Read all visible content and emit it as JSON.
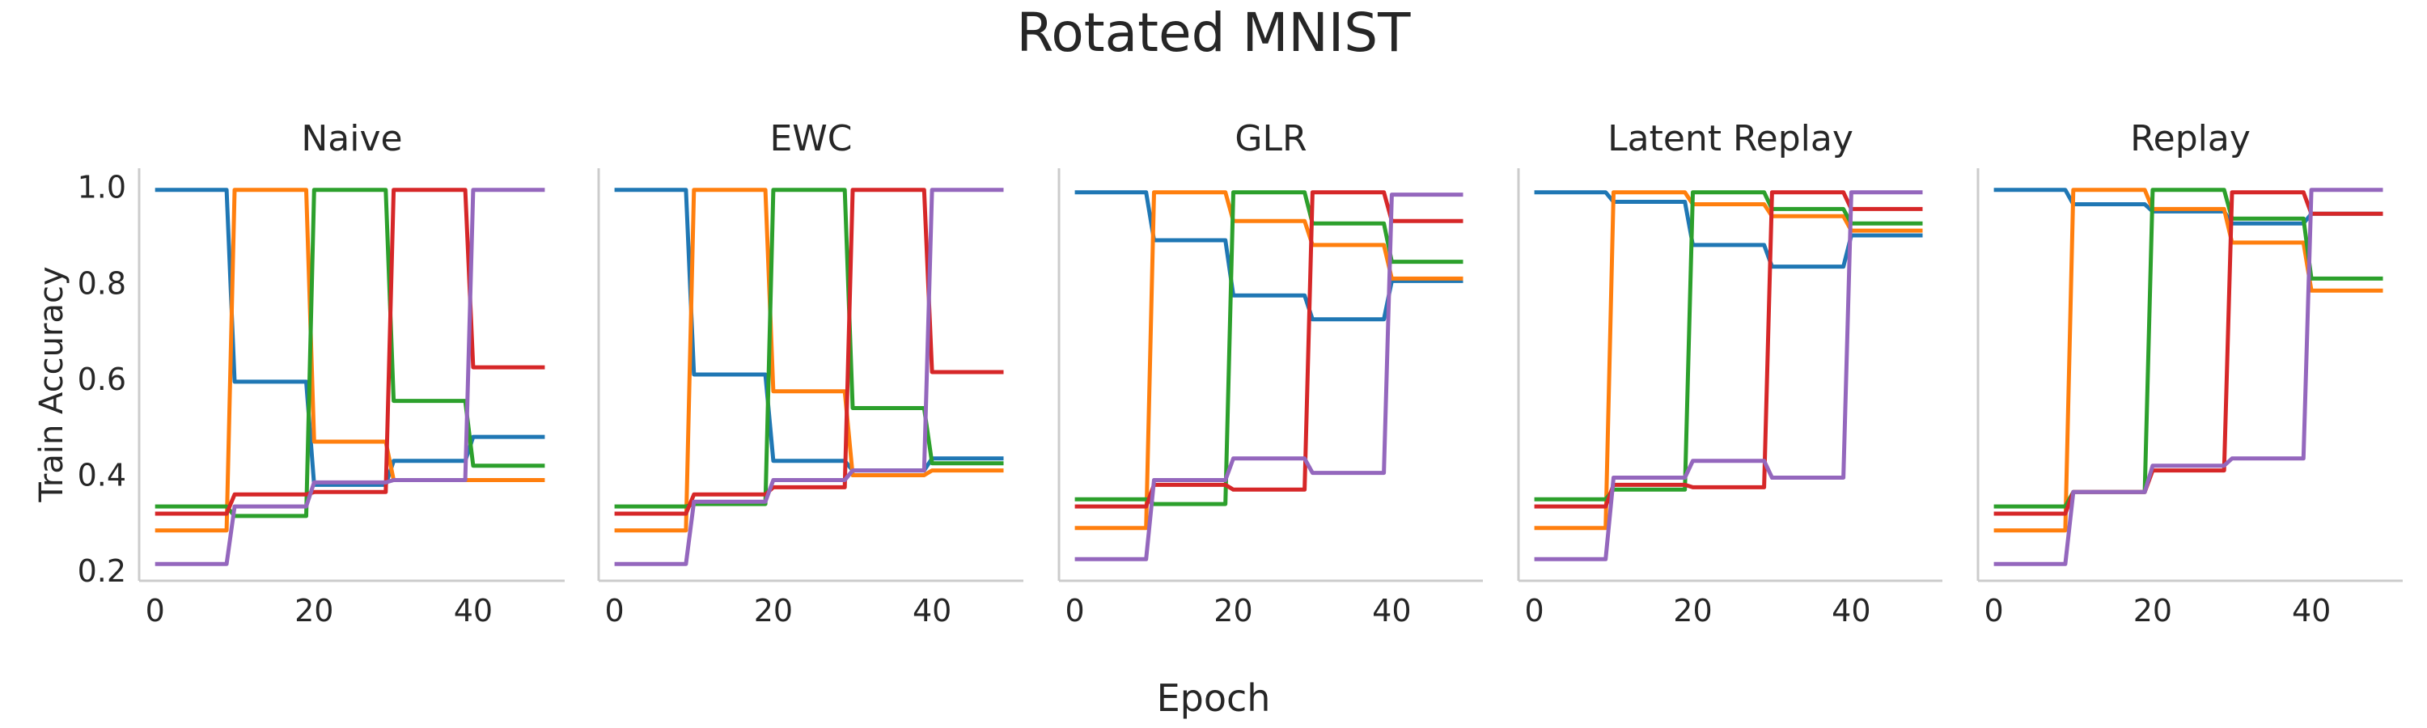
{
  "figure": {
    "title": "Rotated MNIST",
    "xlabel": "Epoch",
    "ylabel": "Train Accuracy"
  },
  "colors": {
    "series": [
      "#1f77b4",
      "#ff7f0e",
      "#2ca02c",
      "#d62728",
      "#9467bd"
    ],
    "axis": "#cccccc",
    "text": "#262626"
  },
  "chart_data": [
    {
      "type": "line",
      "title": "Naive",
      "xlim": [
        -2,
        51.5
      ],
      "ylim": [
        0.18,
        1.04
      ],
      "xticks": [
        "0",
        "20",
        "40"
      ],
      "yticks": [
        "0.2",
        "0.4",
        "0.6",
        "0.8",
        "1.0"
      ],
      "grid": false,
      "series": [
        {
          "x": [
            0,
            9,
            10,
            19,
            20,
            29,
            30,
            39,
            40,
            49
          ],
          "y": [
            0.995,
            0.995,
            0.595,
            0.595,
            0.38,
            0.38,
            0.43,
            0.43,
            0.48,
            0.48
          ]
        },
        {
          "x": [
            0,
            9,
            10,
            19,
            20,
            29,
            30,
            39,
            40,
            49
          ],
          "y": [
            0.285,
            0.285,
            0.995,
            0.995,
            0.47,
            0.47,
            0.39,
            0.39,
            0.39,
            0.39
          ]
        },
        {
          "x": [
            0,
            9,
            10,
            19,
            20,
            29,
            30,
            39,
            40,
            49
          ],
          "y": [
            0.335,
            0.335,
            0.315,
            0.315,
            0.995,
            0.995,
            0.555,
            0.555,
            0.42,
            0.42
          ]
        },
        {
          "x": [
            0,
            9,
            10,
            19,
            20,
            29,
            30,
            39,
            40,
            49
          ],
          "y": [
            0.32,
            0.32,
            0.36,
            0.36,
            0.365,
            0.365,
            0.995,
            0.995,
            0.625,
            0.625
          ]
        },
        {
          "x": [
            0,
            9,
            10,
            19,
            20,
            29,
            30,
            39,
            40,
            49
          ],
          "y": [
            0.215,
            0.215,
            0.335,
            0.335,
            0.385,
            0.385,
            0.39,
            0.39,
            0.995,
            0.995
          ]
        }
      ]
    },
    {
      "type": "line",
      "title": "EWC",
      "xlim": [
        -2,
        51.5
      ],
      "ylim": [
        0.18,
        1.04
      ],
      "xticks": [
        "0",
        "20",
        "40"
      ],
      "yticks": [],
      "grid": false,
      "series": [
        {
          "x": [
            0,
            9,
            10,
            19,
            20,
            29,
            30,
            39,
            40,
            49
          ],
          "y": [
            0.995,
            0.995,
            0.61,
            0.61,
            0.43,
            0.43,
            0.41,
            0.41,
            0.435,
            0.435
          ]
        },
        {
          "x": [
            0,
            9,
            10,
            19,
            20,
            29,
            30,
            39,
            40,
            49
          ],
          "y": [
            0.285,
            0.285,
            0.995,
            0.995,
            0.575,
            0.575,
            0.4,
            0.4,
            0.41,
            0.41
          ]
        },
        {
          "x": [
            0,
            9,
            10,
            19,
            20,
            29,
            30,
            39,
            40,
            49
          ],
          "y": [
            0.335,
            0.335,
            0.34,
            0.34,
            0.995,
            0.995,
            0.54,
            0.54,
            0.425,
            0.425
          ]
        },
        {
          "x": [
            0,
            9,
            10,
            19,
            20,
            29,
            30,
            39,
            40,
            49
          ],
          "y": [
            0.32,
            0.32,
            0.36,
            0.36,
            0.375,
            0.375,
            0.995,
            0.995,
            0.615,
            0.615
          ]
        },
        {
          "x": [
            0,
            9,
            10,
            19,
            20,
            29,
            30,
            39,
            40,
            49
          ],
          "y": [
            0.215,
            0.215,
            0.345,
            0.345,
            0.39,
            0.39,
            0.41,
            0.41,
            0.995,
            0.995
          ]
        }
      ]
    },
    {
      "type": "line",
      "title": "GLR",
      "xlim": [
        -2,
        51.5
      ],
      "ylim": [
        0.18,
        1.04
      ],
      "xticks": [
        "0",
        "20",
        "40"
      ],
      "yticks": [],
      "grid": false,
      "series": [
        {
          "x": [
            0,
            9,
            10,
            19,
            20,
            29,
            30,
            39,
            40,
            49
          ],
          "y": [
            0.99,
            0.99,
            0.89,
            0.89,
            0.775,
            0.775,
            0.725,
            0.725,
            0.805,
            0.805
          ]
        },
        {
          "x": [
            0,
            9,
            10,
            19,
            20,
            29,
            30,
            39,
            40,
            49
          ],
          "y": [
            0.29,
            0.29,
            0.99,
            0.99,
            0.93,
            0.93,
            0.88,
            0.88,
            0.81,
            0.81
          ]
        },
        {
          "x": [
            0,
            9,
            10,
            19,
            20,
            29,
            30,
            39,
            40,
            49
          ],
          "y": [
            0.35,
            0.35,
            0.34,
            0.34,
            0.99,
            0.99,
            0.925,
            0.925,
            0.845,
            0.845
          ]
        },
        {
          "x": [
            0,
            9,
            10,
            19,
            20,
            29,
            30,
            39,
            40,
            49
          ],
          "y": [
            0.335,
            0.335,
            0.38,
            0.38,
            0.37,
            0.37,
            0.99,
            0.99,
            0.93,
            0.93
          ]
        },
        {
          "x": [
            0,
            9,
            10,
            19,
            20,
            29,
            30,
            39,
            40,
            49
          ],
          "y": [
            0.225,
            0.225,
            0.39,
            0.39,
            0.435,
            0.435,
            0.405,
            0.405,
            0.985,
            0.985
          ]
        }
      ]
    },
    {
      "type": "line",
      "title": "Latent Replay",
      "xlim": [
        -2,
        51.5
      ],
      "ylim": [
        0.18,
        1.04
      ],
      "xticks": [
        "0",
        "20",
        "40"
      ],
      "yticks": [],
      "grid": false,
      "series": [
        {
          "x": [
            0,
            9,
            10,
            19,
            20,
            29,
            30,
            39,
            40,
            49
          ],
          "y": [
            0.99,
            0.99,
            0.97,
            0.97,
            0.88,
            0.88,
            0.835,
            0.835,
            0.9,
            0.9
          ]
        },
        {
          "x": [
            0,
            9,
            10,
            19,
            20,
            29,
            30,
            39,
            40,
            49
          ],
          "y": [
            0.29,
            0.29,
            0.99,
            0.99,
            0.965,
            0.965,
            0.94,
            0.94,
            0.91,
            0.91
          ]
        },
        {
          "x": [
            0,
            9,
            10,
            19,
            20,
            29,
            30,
            39,
            40,
            49
          ],
          "y": [
            0.35,
            0.35,
            0.37,
            0.37,
            0.99,
            0.99,
            0.955,
            0.955,
            0.925,
            0.925
          ]
        },
        {
          "x": [
            0,
            9,
            10,
            19,
            20,
            29,
            30,
            39,
            40,
            49
          ],
          "y": [
            0.335,
            0.335,
            0.38,
            0.38,
            0.375,
            0.375,
            0.99,
            0.99,
            0.955,
            0.955
          ]
        },
        {
          "x": [
            0,
            9,
            10,
            19,
            20,
            29,
            30,
            39,
            40,
            49
          ],
          "y": [
            0.225,
            0.225,
            0.395,
            0.395,
            0.43,
            0.43,
            0.395,
            0.395,
            0.99,
            0.99
          ]
        }
      ]
    },
    {
      "type": "line",
      "title": "Replay",
      "xlim": [
        -2,
        51.5
      ],
      "ylim": [
        0.18,
        1.04
      ],
      "xticks": [
        "0",
        "20",
        "40"
      ],
      "yticks": [],
      "grid": false,
      "series": [
        {
          "x": [
            0,
            9,
            10,
            19,
            20,
            29,
            30,
            39,
            40,
            49
          ],
          "y": [
            0.995,
            0.995,
            0.965,
            0.965,
            0.95,
            0.95,
            0.925,
            0.925,
            0.945,
            0.945
          ]
        },
        {
          "x": [
            0,
            9,
            10,
            19,
            20,
            29,
            30,
            39,
            40,
            49
          ],
          "y": [
            0.285,
            0.285,
            0.995,
            0.995,
            0.955,
            0.955,
            0.885,
            0.885,
            0.785,
            0.785
          ]
        },
        {
          "x": [
            0,
            9,
            10,
            19,
            20,
            29,
            30,
            39,
            40,
            49
          ],
          "y": [
            0.335,
            0.335,
            0.365,
            0.365,
            0.995,
            0.995,
            0.935,
            0.935,
            0.81,
            0.81
          ]
        },
        {
          "x": [
            0,
            9,
            10,
            19,
            20,
            29,
            30,
            39,
            40,
            49
          ],
          "y": [
            0.32,
            0.32,
            0.365,
            0.365,
            0.41,
            0.41,
            0.99,
            0.99,
            0.945,
            0.945
          ]
        },
        {
          "x": [
            0,
            9,
            10,
            19,
            20,
            29,
            30,
            39,
            40,
            49
          ],
          "y": [
            0.215,
            0.215,
            0.365,
            0.365,
            0.42,
            0.42,
            0.435,
            0.435,
            0.995,
            0.995
          ]
        }
      ]
    }
  ]
}
